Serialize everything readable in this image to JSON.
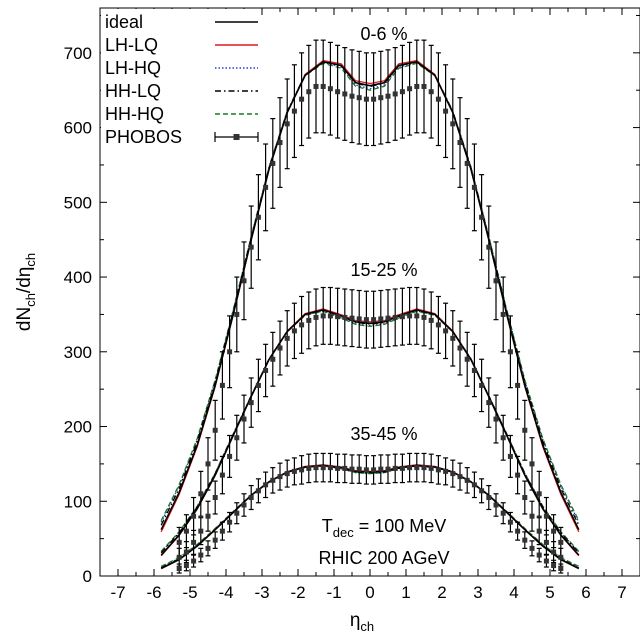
{
  "chart_data": {
    "type": "line",
    "xlabel": "η",
    "xlabel_sub": "ch",
    "ylabel": "dN",
    "ylabel_parts": [
      "dN",
      "ch",
      "/dη",
      "ch"
    ],
    "xlim": [
      -7.5,
      7.5
    ],
    "ylim": [
      0,
      760
    ],
    "x_ticks": [
      -7,
      -6,
      -5,
      -4,
      -3,
      -2,
      -1,
      0,
      1,
      2,
      3,
      4,
      5,
      6,
      7
    ],
    "y_ticks": [
      0,
      100,
      200,
      300,
      400,
      500,
      600,
      700
    ],
    "x_tick_labels": [
      "-7",
      "-6",
      "-5",
      "-4",
      "-3",
      "-2",
      "-1",
      "0",
      "1",
      "2",
      "3",
      "4",
      "5",
      "6",
      "7"
    ],
    "y_tick_labels": [
      "0",
      "100",
      "200",
      "300",
      "400",
      "500",
      "600",
      "700"
    ],
    "grid": false,
    "legend_position": "top-left",
    "legend": [
      {
        "label": "ideal",
        "color": "#000000",
        "style": "solid"
      },
      {
        "label": "LH-LQ",
        "color": "#e0191b",
        "style": "solid"
      },
      {
        "label": "LH-HQ",
        "color": "#2a3bd6",
        "style": "dotted"
      },
      {
        "label": "HH-LQ",
        "color": "#000000",
        "style": "dashdot"
      },
      {
        "label": "HH-HQ",
        "color": "#1b7a1b",
        "style": "dashed"
      },
      {
        "label": "PHOBOS",
        "color": "#000000",
        "style": "points-errorbars"
      }
    ],
    "annotations": {
      "centrality_0_6": "0-6 %",
      "centrality_15_25": "15-25 %",
      "centrality_35_45": "35-45 %",
      "tdec_prefix": "T",
      "tdec_sub": "dec",
      "tdec_value": " = 100 MeV",
      "rhic": "RHIC 200 AGeV"
    },
    "curves": [
      {
        "group": "0-6 %",
        "x": [
          -5.8,
          -5.3,
          -4.8,
          -4.3,
          -3.8,
          -3.3,
          -2.8,
          -2.3,
          -1.8,
          -1.3,
          -0.8,
          -0.4,
          0,
          0.4,
          0.8,
          1.3,
          1.8,
          2.3,
          2.8,
          3.3,
          3.8,
          4.3,
          4.8,
          5.3,
          5.8
        ],
        "ideal": [
          62,
          112,
          175,
          255,
          350,
          450,
          545,
          620,
          670,
          688,
          683,
          660,
          656,
          660,
          683,
          688,
          670,
          620,
          545,
          450,
          350,
          255,
          175,
          112,
          62
        ],
        "offsets": {
          "LH-LQ": [
            3,
            -3
          ],
          "LH-HQ": [
            -4,
            10
          ],
          "HH-LQ": [
            -1,
            6
          ],
          "HH-HQ": [
            -6,
            12
          ]
        }
      },
      {
        "group": "15-25 %",
        "x": [
          -5.8,
          -5.3,
          -4.8,
          -4.3,
          -3.8,
          -3.3,
          -2.8,
          -2.3,
          -1.8,
          -1.3,
          -0.8,
          -0.4,
          0,
          0.4,
          0.8,
          1.3,
          1.8,
          2.3,
          2.8,
          3.3,
          3.8,
          4.3,
          4.8,
          5.3,
          5.8
        ],
        "ideal": [
          28,
          55,
          90,
          135,
          188,
          240,
          290,
          327,
          350,
          356,
          348,
          340,
          338,
          340,
          348,
          356,
          350,
          327,
          290,
          240,
          188,
          135,
          90,
          55,
          28
        ],
        "offsets": {
          "LH-LQ": [
            2,
            -1
          ],
          "LH-HQ": [
            -3,
            4
          ],
          "HH-LQ": [
            -1,
            3
          ],
          "HH-HQ": [
            -4,
            5
          ]
        }
      },
      {
        "group": "35-45 %",
        "x": [
          -5.8,
          -5.3,
          -4.8,
          -4.3,
          -3.8,
          -3.3,
          -2.8,
          -2.3,
          -1.8,
          -1.3,
          -0.8,
          -0.4,
          0,
          0.4,
          0.8,
          1.3,
          1.8,
          2.3,
          2.8,
          3.3,
          3.8,
          4.3,
          4.8,
          5.3,
          5.8
        ],
        "ideal": [
          10,
          22,
          40,
          62,
          85,
          108,
          126,
          139,
          146,
          148,
          145,
          140,
          139,
          140,
          145,
          148,
          146,
          139,
          126,
          108,
          85,
          62,
          40,
          22,
          10
        ],
        "offsets": {
          "LH-LQ": [
            1,
            0
          ],
          "LH-HQ": [
            -2,
            2
          ],
          "HH-LQ": [
            -1,
            1
          ],
          "HH-HQ": [
            -2,
            3
          ]
        }
      }
    ],
    "phobos": [
      {
        "group": "0-6 %",
        "x": [
          -5.3,
          -5.1,
          -4.9,
          -4.7,
          -4.5,
          -4.3,
          -4.1,
          -3.9,
          -3.7,
          -3.5,
          -3.3,
          -3.1,
          -2.9,
          -2.7,
          -2.5,
          -2.3,
          -2.1,
          -1.9,
          -1.7,
          -1.5,
          -1.3,
          -1.1,
          -0.9,
          -0.7,
          -0.5,
          -0.3,
          -0.1,
          0.1,
          0.3,
          0.5,
          0.7,
          0.9,
          1.1,
          1.3,
          1.5,
          1.7,
          1.9,
          2.1,
          2.3,
          2.5,
          2.7,
          2.9,
          3.1,
          3.3,
          3.5,
          3.7,
          3.9,
          4.1,
          4.3,
          4.5,
          4.7,
          4.9,
          5.1,
          5.3
        ],
        "y": [
          45,
          60,
          80,
          110,
          150,
          195,
          255,
          300,
          350,
          395,
          440,
          480,
          520,
          552,
          580,
          605,
          622,
          638,
          648,
          655,
          655,
          652,
          648,
          645,
          642,
          640,
          638,
          638,
          640,
          642,
          645,
          648,
          652,
          655,
          655,
          648,
          638,
          622,
          605,
          580,
          552,
          520,
          480,
          440,
          395,
          350,
          300,
          255,
          195,
          150,
          110,
          80,
          60,
          45
        ],
        "err": [
          20,
          22,
          25,
          30,
          35,
          40,
          45,
          48,
          50,
          52,
          55,
          57,
          58,
          60,
          60,
          60,
          62,
          62,
          62,
          62,
          62,
          62,
          62,
          62,
          62,
          62,
          62,
          62,
          62,
          62,
          62,
          62,
          62,
          62,
          62,
          62,
          62,
          62,
          60,
          60,
          60,
          58,
          57,
          55,
          52,
          50,
          48,
          45,
          40,
          35,
          30,
          25,
          22,
          20
        ]
      },
      {
        "group": "15-25 %",
        "x": [
          -5.3,
          -5.1,
          -4.9,
          -4.7,
          -4.5,
          -4.3,
          -4.1,
          -3.9,
          -3.7,
          -3.5,
          -3.3,
          -3.1,
          -2.9,
          -2.7,
          -2.5,
          -2.3,
          -2.1,
          -1.9,
          -1.7,
          -1.5,
          -1.3,
          -1.1,
          -0.9,
          -0.7,
          -0.5,
          -0.3,
          -0.1,
          0.1,
          0.3,
          0.5,
          0.7,
          0.9,
          1.1,
          1.3,
          1.5,
          1.7,
          1.9,
          2.1,
          2.3,
          2.5,
          2.7,
          2.9,
          3.1,
          3.3,
          3.5,
          3.7,
          3.9,
          4.1,
          4.3,
          4.5,
          4.7,
          4.9,
          5.1,
          5.3
        ],
        "y": [
          25,
          32,
          45,
          60,
          80,
          105,
          135,
          160,
          185,
          210,
          232,
          255,
          275,
          290,
          305,
          318,
          328,
          336,
          342,
          346,
          348,
          348,
          347,
          346,
          345,
          344,
          343,
          343,
          344,
          345,
          346,
          347,
          348,
          348,
          346,
          342,
          336,
          328,
          318,
          305,
          290,
          275,
          255,
          232,
          210,
          185,
          160,
          135,
          105,
          80,
          60,
          45,
          32,
          25
        ],
        "err": [
          12,
          14,
          16,
          18,
          20,
          22,
          25,
          28,
          30,
          32,
          33,
          35,
          35,
          36,
          36,
          37,
          37,
          38,
          38,
          38,
          38,
          38,
          38,
          38,
          38,
          38,
          38,
          38,
          38,
          38,
          38,
          38,
          38,
          38,
          38,
          38,
          38,
          37,
          37,
          36,
          36,
          35,
          35,
          33,
          32,
          30,
          28,
          25,
          22,
          20,
          18,
          16,
          14,
          12
        ]
      },
      {
        "group": "35-45 %",
        "x": [
          -5.3,
          -5.1,
          -4.9,
          -4.7,
          -4.5,
          -4.3,
          -4.1,
          -3.9,
          -3.7,
          -3.5,
          -3.3,
          -3.1,
          -2.9,
          -2.7,
          -2.5,
          -2.3,
          -2.1,
          -1.9,
          -1.7,
          -1.5,
          -1.3,
          -1.1,
          -0.9,
          -0.7,
          -0.5,
          -0.3,
          -0.1,
          0.1,
          0.3,
          0.5,
          0.7,
          0.9,
          1.1,
          1.3,
          1.5,
          1.7,
          1.9,
          2.1,
          2.3,
          2.5,
          2.7,
          2.9,
          3.1,
          3.3,
          3.5,
          3.7,
          3.9,
          4.1,
          4.3,
          4.5,
          4.7,
          4.9,
          5.1,
          5.3
        ],
        "y": [
          10,
          14,
          20,
          28,
          37,
          48,
          60,
          72,
          84,
          95,
          105,
          114,
          122,
          128,
          133,
          137,
          140,
          142,
          144,
          145,
          145,
          145,
          144,
          144,
          143,
          143,
          142,
          142,
          143,
          143,
          144,
          144,
          145,
          145,
          145,
          144,
          142,
          140,
          137,
          133,
          128,
          122,
          114,
          105,
          95,
          84,
          72,
          60,
          48,
          37,
          28,
          20,
          14,
          10
        ],
        "err": [
          6,
          7,
          8,
          9,
          10,
          11,
          12,
          13,
          14,
          15,
          16,
          16,
          17,
          17,
          18,
          18,
          18,
          19,
          19,
          19,
          19,
          19,
          19,
          19,
          19,
          19,
          19,
          19,
          19,
          19,
          19,
          19,
          19,
          19,
          19,
          19,
          19,
          18,
          18,
          18,
          17,
          17,
          16,
          16,
          15,
          14,
          13,
          12,
          11,
          10,
          9,
          8,
          7,
          6
        ]
      }
    ]
  }
}
